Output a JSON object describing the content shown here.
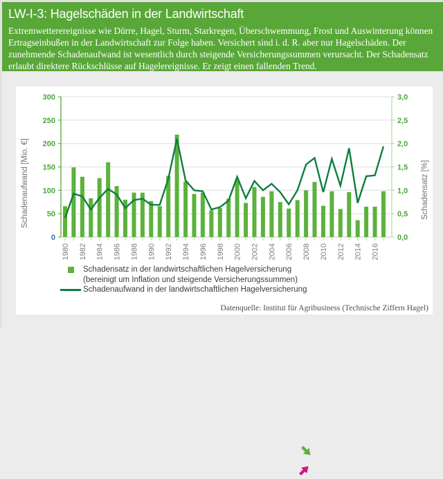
{
  "header": {
    "title": "LW-I-3: Hagelschäden in der Landwirtschaft",
    "description": "Extremwetterereignisse wie Dürre, Hagel, Sturm, Starkregen, Überschwemmung, Frost und Auswinterung können Ertragseinbußen in der Landwirtschaft zur Folge haben. Versichert sind i. d. R. aber nur Hagelschäden. Der zunehmende Schadenaufwand ist wesentlich durch steigende Versicherungssummen verursacht. Der Schadensatz erlaubt direktere Rückschlüsse auf Hagelereignisse. Er zeigt einen fallenden Trend."
  },
  "chart_data": {
    "type": "bar+line",
    "title": "",
    "categories": [
      "1980",
      "1981",
      "1982",
      "1983",
      "1984",
      "1985",
      "1986",
      "1987",
      "1988",
      "1989",
      "1990",
      "1991",
      "1992",
      "1993",
      "1994",
      "1995",
      "1996",
      "1997",
      "1998",
      "1999",
      "2000",
      "2001",
      "2002",
      "2003",
      "2004",
      "2005",
      "2006",
      "2007",
      "2008",
      "2009",
      "2010",
      "2011",
      "2012",
      "2013",
      "2014",
      "2015",
      "2016",
      "2017"
    ],
    "series": [
      {
        "name": "Schadensatz in der landwirtschaftlichen Hagelversicherung (bereinigt um Inflation und steigende Versicherungssummen)",
        "type": "bar",
        "axis": "right",
        "values": [
          0.66,
          1.49,
          1.29,
          0.83,
          1.26,
          1.6,
          1.09,
          0.8,
          0.95,
          0.95,
          0.77,
          0.66,
          1.31,
          2.19,
          1.19,
          0.92,
          0.95,
          0.57,
          0.62,
          0.82,
          1.23,
          0.73,
          1.07,
          0.86,
          0.98,
          0.75,
          0.61,
          0.79,
          1.0,
          1.18,
          0.67,
          0.98,
          0.6,
          0.96,
          0.36,
          0.65,
          0.65,
          0.98
        ]
      },
      {
        "name": "Schadenaufwand in der landwirtschaftlichen Hagelversicherung",
        "type": "line",
        "axis": "left",
        "values": [
          41,
          93,
          87,
          59,
          84,
          103,
          91,
          62,
          79,
          82,
          69,
          69,
          125,
          210,
          121,
          100,
          98,
          59,
          64,
          78,
          129,
          83,
          120,
          100,
          114,
          96,
          70,
          100,
          155,
          169,
          96,
          167,
          110,
          190,
          73,
          130,
          132,
          194
        ]
      }
    ],
    "y_left": {
      "title": "Schadenaufwand [Mio. €]",
      "min": 0,
      "max": 300,
      "step": 50,
      "tick_labels": [
        "0",
        "50",
        "100",
        "150",
        "200",
        "250",
        "300"
      ]
    },
    "y_right": {
      "title": "Schadensatz [%]",
      "min": 0,
      "max": 3,
      "step": 0.5,
      "tick_labels": [
        "0,0",
        "0,5",
        "1,0",
        "1,5",
        "2,0",
        "2,5",
        "3,0"
      ]
    },
    "x_tick_labels": [
      "1980",
      "1982",
      "1984",
      "1986",
      "1988",
      "1990",
      "1992",
      "1994",
      "1996",
      "1998",
      "2000",
      "2002",
      "2004",
      "2006",
      "2008",
      "2010",
      "2012",
      "2014",
      "2016"
    ],
    "grid": true,
    "legend_position": "bottom"
  },
  "legend": {
    "items": [
      {
        "label": "Schadensatz in der landwirtschaftlichen Hagelversicherung",
        "sublabel": "(bereinigt um Inflation und steigende Versicherungssummen)",
        "trend": "down"
      },
      {
        "label": "Schadenaufwand in der landwirtschaftlichen Hagelversicherung",
        "trend": "up"
      }
    ]
  },
  "footer": {
    "source": "Datenquelle: Institut für Agribusiness (Technische Ziffern Hagel)"
  },
  "colors": {
    "banner_green": "#58a738",
    "bar_green": "#5bb23c",
    "line_green": "#0e7e3e",
    "tick_green": "#4aa53c",
    "zero_blue": "#2e74b5",
    "axis_light_green": "#b5d99c",
    "grid_gray": "#dcdcdc",
    "text_gray": "#7f7f7f",
    "year_tick_gray": "#c9c9c9",
    "trend_up_pink": "#d6147f"
  }
}
